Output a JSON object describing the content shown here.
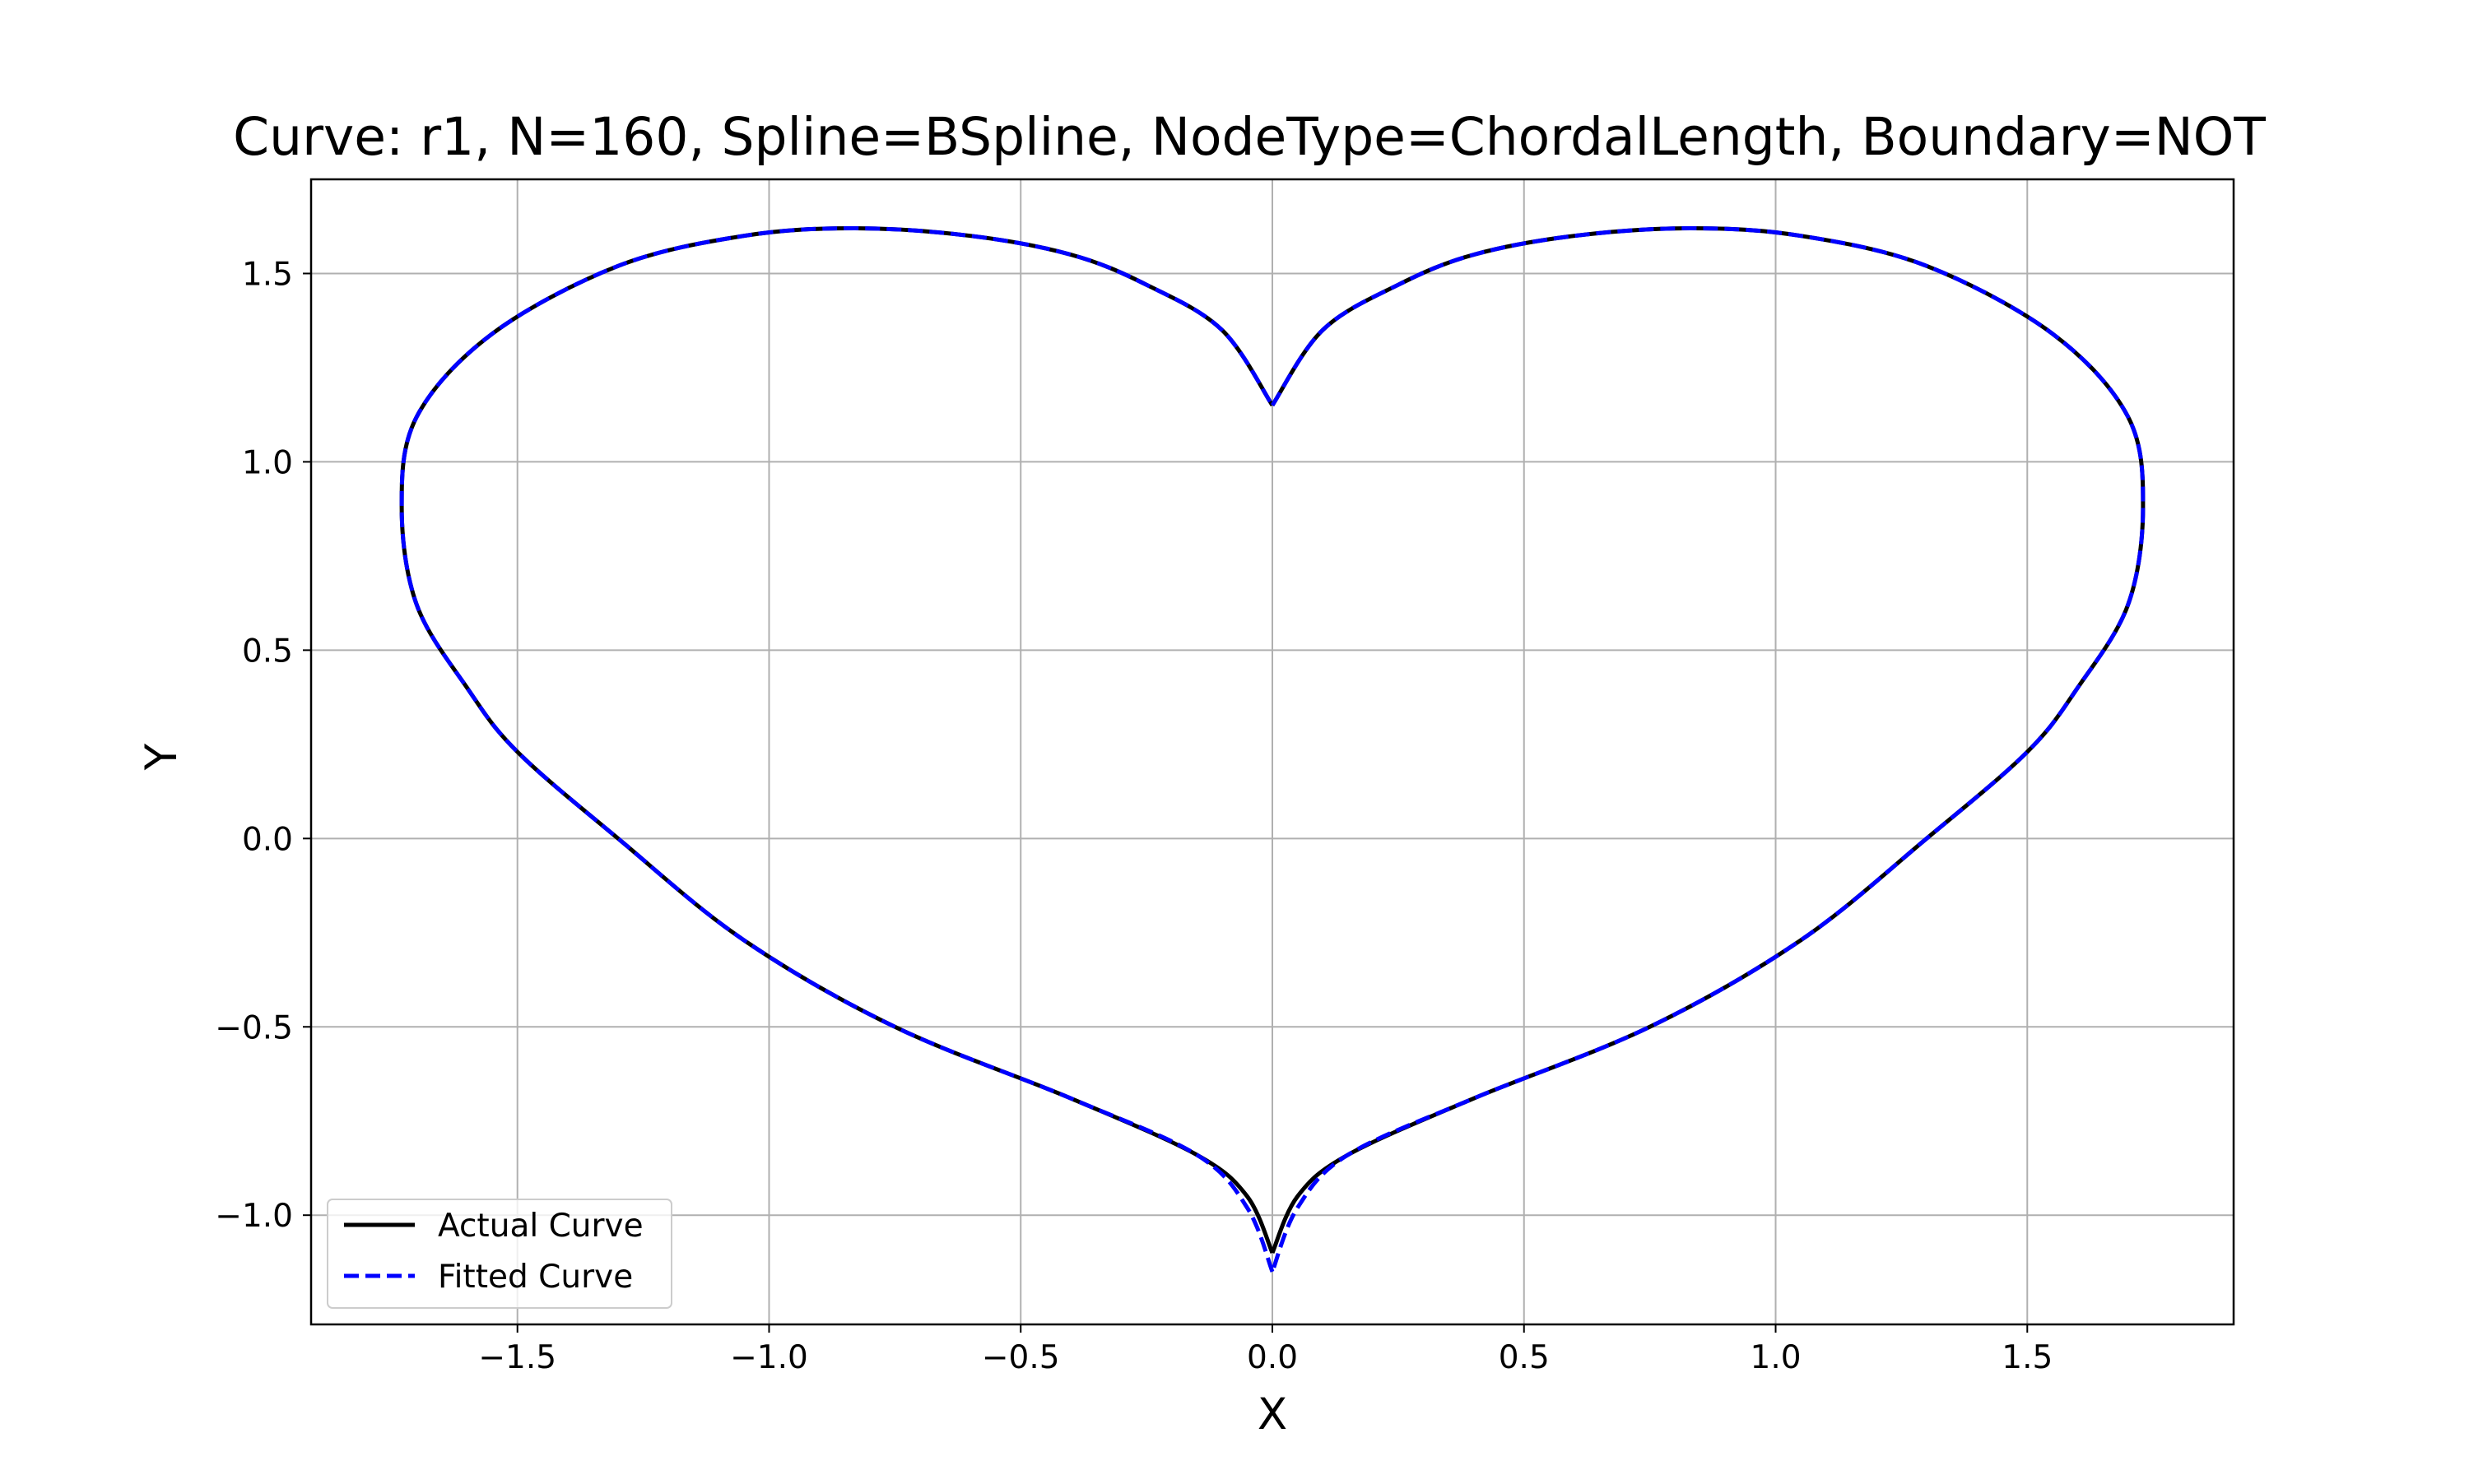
{
  "chart_data": {
    "type": "line",
    "title": "Curve: r1, N=160, Spline=BSpline, NodeType=ChordalLength, Boundary=NOT",
    "xlabel": "X",
    "ylabel": "Y",
    "xlim": [
      -1.91,
      1.91
    ],
    "ylim": [
      -1.29,
      1.75
    ],
    "grid": true,
    "legend_position": "lower-left",
    "x_ticks": [
      -1.5,
      -1.0,
      -0.5,
      0.0,
      0.5,
      1.0,
      1.5
    ],
    "x_tick_labels": [
      "−1.5",
      "−1.0",
      "−0.5",
      "0.0",
      "0.5",
      "1.0",
      "1.5"
    ],
    "y_ticks": [
      -1.0,
      -0.5,
      0.0,
      0.5,
      1.0,
      1.5
    ],
    "y_tick_labels": [
      "−1.0",
      "−0.5",
      "0.0",
      "0.5",
      "1.0",
      "1.5"
    ],
    "series": [
      {
        "name": "Actual Curve",
        "color": "#000000",
        "style": "solid",
        "x": [
          0.0,
          0.1,
          0.25,
          0.4,
          0.6,
          0.83,
          1.05,
          1.3,
          1.55,
          1.7,
          1.73,
          1.7,
          1.6,
          1.5,
          1.3,
          1.05,
          0.75,
          0.4,
          0.15,
          0.05,
          0.0,
          -0.05,
          -0.15,
          -0.4,
          -0.75,
          -1.05,
          -1.3,
          -1.5,
          -1.6,
          -1.7,
          -1.73,
          -1.7,
          -1.55,
          -1.3,
          -1.05,
          -0.83,
          -0.6,
          -0.4,
          -0.25,
          -0.1,
          0.0
        ],
        "y": [
          1.15,
          1.35,
          1.47,
          1.55,
          1.6,
          1.62,
          1.6,
          1.52,
          1.34,
          1.12,
          0.88,
          0.62,
          0.4,
          0.23,
          0.0,
          -0.27,
          -0.5,
          -0.69,
          -0.84,
          -0.95,
          -1.1,
          -0.95,
          -0.84,
          -0.69,
          -0.5,
          -0.27,
          0.0,
          0.23,
          0.4,
          0.62,
          0.88,
          1.12,
          1.34,
          1.52,
          1.6,
          1.62,
          1.6,
          1.55,
          1.47,
          1.35,
          1.15
        ]
      },
      {
        "name": "Fitted Curve",
        "color": "#0000ff",
        "style": "dashed",
        "x": [
          0.0,
          0.1,
          0.25,
          0.4,
          0.6,
          0.83,
          1.05,
          1.3,
          1.55,
          1.7,
          1.73,
          1.7,
          1.6,
          1.5,
          1.3,
          1.05,
          0.75,
          0.4,
          0.15,
          0.05,
          0.0,
          -0.05,
          -0.15,
          -0.4,
          -0.75,
          -1.05,
          -1.3,
          -1.5,
          -1.6,
          -1.7,
          -1.73,
          -1.7,
          -1.55,
          -1.3,
          -1.05,
          -0.83,
          -0.6,
          -0.4,
          -0.25,
          -0.1,
          0.0
        ],
        "y": [
          1.15,
          1.35,
          1.47,
          1.55,
          1.6,
          1.62,
          1.6,
          1.52,
          1.34,
          1.12,
          0.88,
          0.62,
          0.4,
          0.23,
          0.0,
          -0.27,
          -0.5,
          -0.69,
          -0.84,
          -0.98,
          -1.15,
          -0.98,
          -0.84,
          -0.69,
          -0.5,
          -0.27,
          0.0,
          0.23,
          0.4,
          0.62,
          0.88,
          1.12,
          1.34,
          1.52,
          1.6,
          1.62,
          1.6,
          1.55,
          1.47,
          1.35,
          1.15
        ]
      }
    ]
  }
}
